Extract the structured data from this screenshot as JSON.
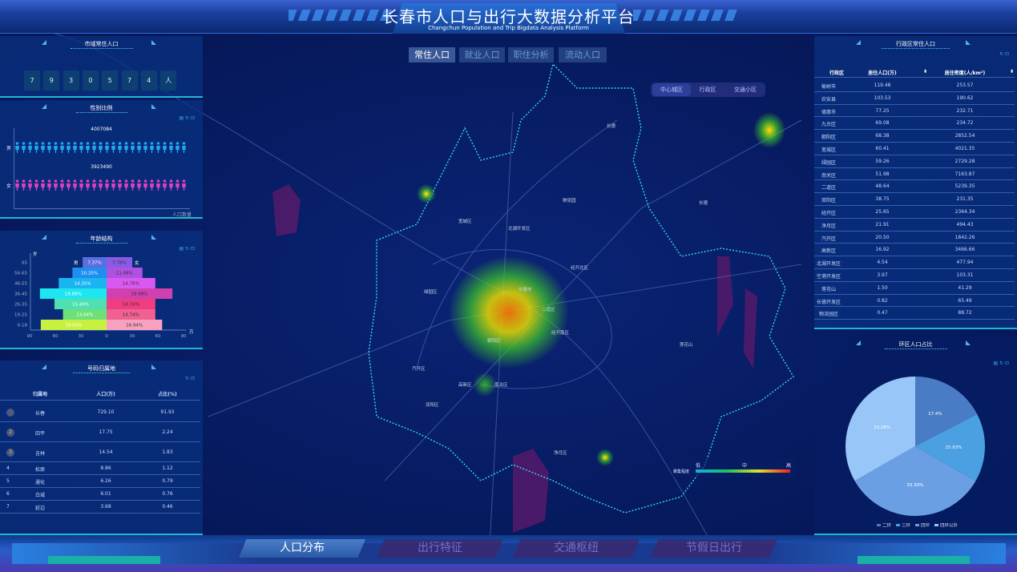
{
  "header": {
    "title": "长春市人口与出行大数据分析平台",
    "subtitle": "Changchun Population and Trip Bigdata Analysis Platform"
  },
  "top_tabs": [
    {
      "label": "常住人口",
      "active": true
    },
    {
      "label": "就业人口"
    },
    {
      "label": "职住分析"
    },
    {
      "label": "流动人口"
    }
  ],
  "map": {
    "segments": [
      {
        "label": "中心城区",
        "active": true
      },
      {
        "label": "行政区"
      },
      {
        "label": "交通小区"
      }
    ],
    "labels": [
      "长德",
      "宽城区",
      "北湖开发区",
      "物流园",
      "经开北区",
      "绿园区",
      "长春市",
      "二道区",
      "经开南区",
      "朝阳区",
      "汽开区",
      "高新区",
      "南关区",
      "双阳区",
      "净月区",
      "莲花山",
      "长德"
    ],
    "legend": {
      "title": "聚集程度",
      "low": "低",
      "mid": "中",
      "high": "高"
    }
  },
  "city_population": {
    "title": "市域常住人口",
    "digits": [
      "7",
      "9",
      "3",
      "0",
      "5",
      "7",
      "4",
      "人"
    ]
  },
  "gender": {
    "title": "性别比例",
    "tools": "▤ ↻ ⊡",
    "male_label": "男",
    "female_label": "女",
    "male_value": "4007084",
    "female_value": "3923490",
    "axis_label": "人口数量",
    "male_color": "#1fa8f0",
    "female_color": "#e040c0"
  },
  "age": {
    "title": "年龄结构",
    "tools": "▤ ↻ ⊡",
    "y_unit": "岁",
    "x_unit": "万",
    "male_label": "男",
    "female_label": "女",
    "chart_data": {
      "type": "bar",
      "categories": [
        "0-18",
        "19-25",
        "26-35",
        "36-45",
        "46-55",
        "56-65",
        "65"
      ],
      "series": [
        {
          "name": "男",
          "values": [
            77,
            51,
            61,
            78,
            56,
            40,
            28
          ],
          "labels": [
            "19.63%",
            "13.04%",
            "15.49%",
            "19.88%",
            "14.35%",
            "10.25%",
            "7.37%"
          ],
          "colors": [
            "#c8f040",
            "#6ee07a",
            "#4ee0b0",
            "#1ee6f0",
            "#1ab4f0",
            "#1e8ef0",
            "#5b6ee0"
          ]
        },
        {
          "name": "女",
          "values": [
            65,
            57,
            57,
            77,
            57,
            42,
            30
          ],
          "labels": [
            "16.94%",
            "14.74%",
            "14.74%",
            "19.98%",
            "14.76%",
            "11.08%",
            "7.78%"
          ],
          "colors": [
            "#f8a0c0",
            "#f06090",
            "#f03c80",
            "#d040b0",
            "#d858f0",
            "#b050e0",
            "#8a5ae6"
          ]
        }
      ],
      "xticks": [
        "90",
        "60",
        "30",
        "0",
        "30",
        "60",
        "90"
      ],
      "xlim": [
        -90,
        90
      ]
    }
  },
  "origin": {
    "title": "号码归属地",
    "tools": "↻ ⊡",
    "columns": [
      "归属地",
      "人口(万)",
      "占比(%)"
    ],
    "rows": [
      [
        "1",
        "长春",
        "729.10",
        "91.93"
      ],
      [
        "2",
        "四平",
        "17.75",
        "2.24"
      ],
      [
        "3",
        "吉林",
        "14.54",
        "1.83"
      ],
      [
        "4",
        "松原",
        "8.86",
        "1.12"
      ],
      [
        "5",
        "通化",
        "6.26",
        "0.79"
      ],
      [
        "6",
        "白城",
        "6.01",
        "0.76"
      ],
      [
        "7",
        "延边",
        "3.68",
        "0.46"
      ]
    ]
  },
  "district": {
    "title": "行政区常住人口",
    "tools": "↻ ⊡",
    "columns": [
      "行政区",
      "居住人口(万)",
      "居住密度(人/km²)"
    ],
    "rows": [
      [
        "榆树市",
        "119.48",
        "253.57"
      ],
      [
        "农安县",
        "103.53",
        "190.62"
      ],
      [
        "德惠市",
        "77.25",
        "232.71"
      ],
      [
        "九台区",
        "69.08",
        "234.72"
      ],
      [
        "朝阳区",
        "68.38",
        "2852.54"
      ],
      [
        "宽城区",
        "60.41",
        "4021.35"
      ],
      [
        "绿园区",
        "59.26",
        "2729.28"
      ],
      [
        "南关区",
        "51.98",
        "7163.87"
      ],
      [
        "二道区",
        "48.64",
        "5239.35"
      ],
      [
        "双阳区",
        "38.75",
        "231.35"
      ],
      [
        "经开区",
        "25.65",
        "2364.34"
      ],
      [
        "净月区",
        "21.91",
        "494.43"
      ],
      [
        "汽开区",
        "20.50",
        "1842.26"
      ],
      [
        "高新区",
        "16.92",
        "3466.66"
      ],
      [
        "北湖开发区",
        "4.54",
        "477.94"
      ],
      [
        "空港开发区",
        "3.97",
        "103.31"
      ],
      [
        "莲花山",
        "1.50",
        "41.29"
      ],
      [
        "长德开发区",
        "0.82",
        "65.49"
      ],
      [
        "物流园区",
        "0.47",
        "88.72"
      ]
    ]
  },
  "ring": {
    "title": "环区人口占比",
    "tools": "▤ ↻ ⊡",
    "chart_data": {
      "type": "pie",
      "categories": [
        "二环",
        "三环",
        "四环",
        "四环以外"
      ],
      "values": [
        17.4,
        15.93,
        33.39,
        33.28
      ],
      "labels": [
        "17.4%",
        "15.93%",
        "33.39%",
        "33.28%"
      ],
      "colors": [
        "#4a7cc6",
        "#4aa0e0",
        "#6a9fe4",
        "#98c6f8"
      ],
      "legend": "bottom"
    }
  },
  "bottom_tabs": [
    {
      "label": "人口分布",
      "active": true
    },
    {
      "label": "出行特征"
    },
    {
      "label": "交通枢纽"
    },
    {
      "label": "节假日出行"
    }
  ]
}
